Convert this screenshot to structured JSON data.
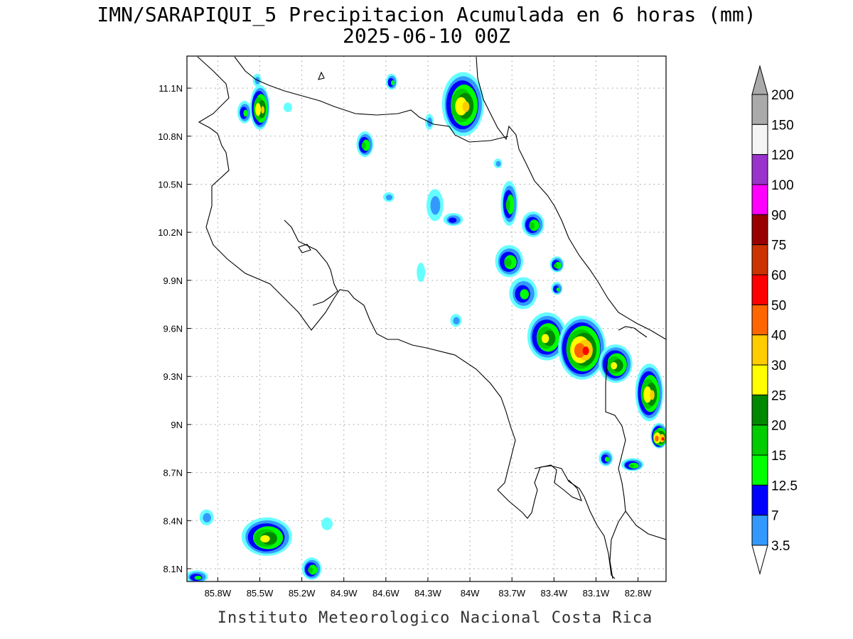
{
  "title": {
    "line1": "IMN/SARAPIQUI_5 Precipitacion Acumulada en 6 horas (mm)",
    "line2": "2025-06-10 00Z"
  },
  "footer": "Instituto Meteorologico Nacional Costa Rica",
  "map": {
    "lon_range": [
      -86.02,
      -82.6
    ],
    "lat_range": [
      8.02,
      11.3
    ],
    "lon_ticks": [
      {
        "value": -85.8,
        "label": "85.8W"
      },
      {
        "value": -85.5,
        "label": "85.5W"
      },
      {
        "value": -85.2,
        "label": "85.2W"
      },
      {
        "value": -84.9,
        "label": "84.9W"
      },
      {
        "value": -84.6,
        "label": "84.6W"
      },
      {
        "value": -84.3,
        "label": "84.3W"
      },
      {
        "value": -84.0,
        "label": "84W"
      },
      {
        "value": -83.7,
        "label": "83.7W"
      },
      {
        "value": -83.4,
        "label": "83.4W"
      },
      {
        "value": -83.1,
        "label": "83.1W"
      },
      {
        "value": -82.8,
        "label": "82.8W"
      }
    ],
    "lat_ticks": [
      {
        "value": 11.1,
        "label": "11.1N"
      },
      {
        "value": 10.8,
        "label": "10.8N"
      },
      {
        "value": 10.5,
        "label": "10.5N"
      },
      {
        "value": 10.2,
        "label": "10.2N"
      },
      {
        "value": 9.9,
        "label": "9.9N"
      },
      {
        "value": 9.6,
        "label": "9.6N"
      },
      {
        "value": 9.3,
        "label": "9.3N"
      },
      {
        "value": 9.0,
        "label": "9N"
      },
      {
        "value": 8.7,
        "label": "8.7N"
      },
      {
        "value": 8.4,
        "label": "8.4N"
      },
      {
        "value": 8.1,
        "label": "8.1N"
      }
    ],
    "grid": true
  },
  "colorbar": {
    "levels": [
      {
        "label": "3.5",
        "color": "#66ffff"
      },
      {
        "label": "7",
        "color": "#3399ff"
      },
      {
        "label": "12.5",
        "color": "#0000ff"
      },
      {
        "label": "15",
        "color": "#00ff00"
      },
      {
        "label": "20",
        "color": "#00cc00"
      },
      {
        "label": "25",
        "color": "#008800"
      },
      {
        "label": "30",
        "color": "#ffff00"
      },
      {
        "label": "40",
        "color": "#ffcc00"
      },
      {
        "label": "50",
        "color": "#ff6600"
      },
      {
        "label": "60",
        "color": "#ff0000"
      },
      {
        "label": "75",
        "color": "#cc3300"
      },
      {
        "label": "90",
        "color": "#990000"
      },
      {
        "label": "100",
        "color": "#ff00ff"
      },
      {
        "label": "120",
        "color": "#9933cc"
      },
      {
        "label": "150",
        "color": "#f5f5f5"
      },
      {
        "label": "200",
        "color": "#aaaaaa"
      }
    ]
  },
  "precip_cells": [
    {
      "lon": -85.5,
      "lat": 10.98,
      "rx": 0.07,
      "ry": 0.14,
      "max_mm": 42
    },
    {
      "lon": -85.61,
      "lat": 10.95,
      "rx": 0.05,
      "ry": 0.07,
      "max_mm": 15
    },
    {
      "lon": -85.52,
      "lat": 11.15,
      "rx": 0.03,
      "ry": 0.04,
      "max_mm": 9
    },
    {
      "lon": -85.3,
      "lat": 10.98,
      "rx": 0.03,
      "ry": 0.03,
      "max_mm": 6
    },
    {
      "lon": -84.75,
      "lat": 10.75,
      "rx": 0.06,
      "ry": 0.08,
      "max_mm": 22
    },
    {
      "lon": -84.56,
      "lat": 11.14,
      "rx": 0.04,
      "ry": 0.05,
      "max_mm": 15
    },
    {
      "lon": -84.58,
      "lat": 10.42,
      "rx": 0.04,
      "ry": 0.03,
      "max_mm": 9
    },
    {
      "lon": -84.05,
      "lat": 11.0,
      "rx": 0.15,
      "ry": 0.2,
      "max_mm": 40
    },
    {
      "lon": -84.29,
      "lat": 10.89,
      "rx": 0.03,
      "ry": 0.05,
      "max_mm": 10
    },
    {
      "lon": -84.25,
      "lat": 10.37,
      "rx": 0.06,
      "ry": 0.1,
      "max_mm": 9
    },
    {
      "lon": -84.12,
      "lat": 10.28,
      "rx": 0.07,
      "ry": 0.04,
      "max_mm": 13
    },
    {
      "lon": -83.8,
      "lat": 10.63,
      "rx": 0.03,
      "ry": 0.03,
      "max_mm": 12
    },
    {
      "lon": -83.72,
      "lat": 10.38,
      "rx": 0.06,
      "ry": 0.14,
      "max_mm": 22
    },
    {
      "lon": -83.55,
      "lat": 10.25,
      "rx": 0.08,
      "ry": 0.08,
      "max_mm": 22
    },
    {
      "lon": -83.72,
      "lat": 10.02,
      "rx": 0.1,
      "ry": 0.1,
      "max_mm": 24
    },
    {
      "lon": -83.62,
      "lat": 9.82,
      "rx": 0.1,
      "ry": 0.1,
      "max_mm": 16
    },
    {
      "lon": -83.38,
      "lat": 10.0,
      "rx": 0.05,
      "ry": 0.05,
      "max_mm": 20
    },
    {
      "lon": -84.1,
      "lat": 9.65,
      "rx": 0.04,
      "ry": 0.04,
      "max_mm": 8
    },
    {
      "lon": -84.35,
      "lat": 9.95,
      "rx": 0.03,
      "ry": 0.06,
      "max_mm": 4
    },
    {
      "lon": -83.38,
      "lat": 9.85,
      "rx": 0.04,
      "ry": 0.04,
      "max_mm": 15
    },
    {
      "lon": -83.45,
      "lat": 9.55,
      "rx": 0.14,
      "ry": 0.15,
      "max_mm": 35
    },
    {
      "lon": -83.2,
      "lat": 9.48,
      "rx": 0.17,
      "ry": 0.2,
      "max_mm": 65
    },
    {
      "lon": -82.96,
      "lat": 9.38,
      "rx": 0.12,
      "ry": 0.12,
      "max_mm": 35
    },
    {
      "lon": -82.72,
      "lat": 9.2,
      "rx": 0.1,
      "ry": 0.18,
      "max_mm": 40
    },
    {
      "lon": -82.65,
      "lat": 8.93,
      "rx": 0.06,
      "ry": 0.08,
      "max_mm": 70
    },
    {
      "lon": -83.03,
      "lat": 8.79,
      "rx": 0.05,
      "ry": 0.05,
      "max_mm": 18
    },
    {
      "lon": -82.84,
      "lat": 8.75,
      "rx": 0.08,
      "ry": 0.04,
      "max_mm": 20
    },
    {
      "lon": -85.45,
      "lat": 8.3,
      "rx": 0.18,
      "ry": 0.12,
      "max_mm": 32
    },
    {
      "lon": -85.13,
      "lat": 8.1,
      "rx": 0.07,
      "ry": 0.07,
      "max_mm": 24
    },
    {
      "lon": -85.95,
      "lat": 8.05,
      "rx": 0.08,
      "ry": 0.04,
      "max_mm": 16
    },
    {
      "lon": -85.88,
      "lat": 8.42,
      "rx": 0.05,
      "ry": 0.05,
      "max_mm": 9
    },
    {
      "lon": -85.02,
      "lat": 8.38,
      "rx": 0.04,
      "ry": 0.04,
      "max_mm": 6
    }
  ]
}
